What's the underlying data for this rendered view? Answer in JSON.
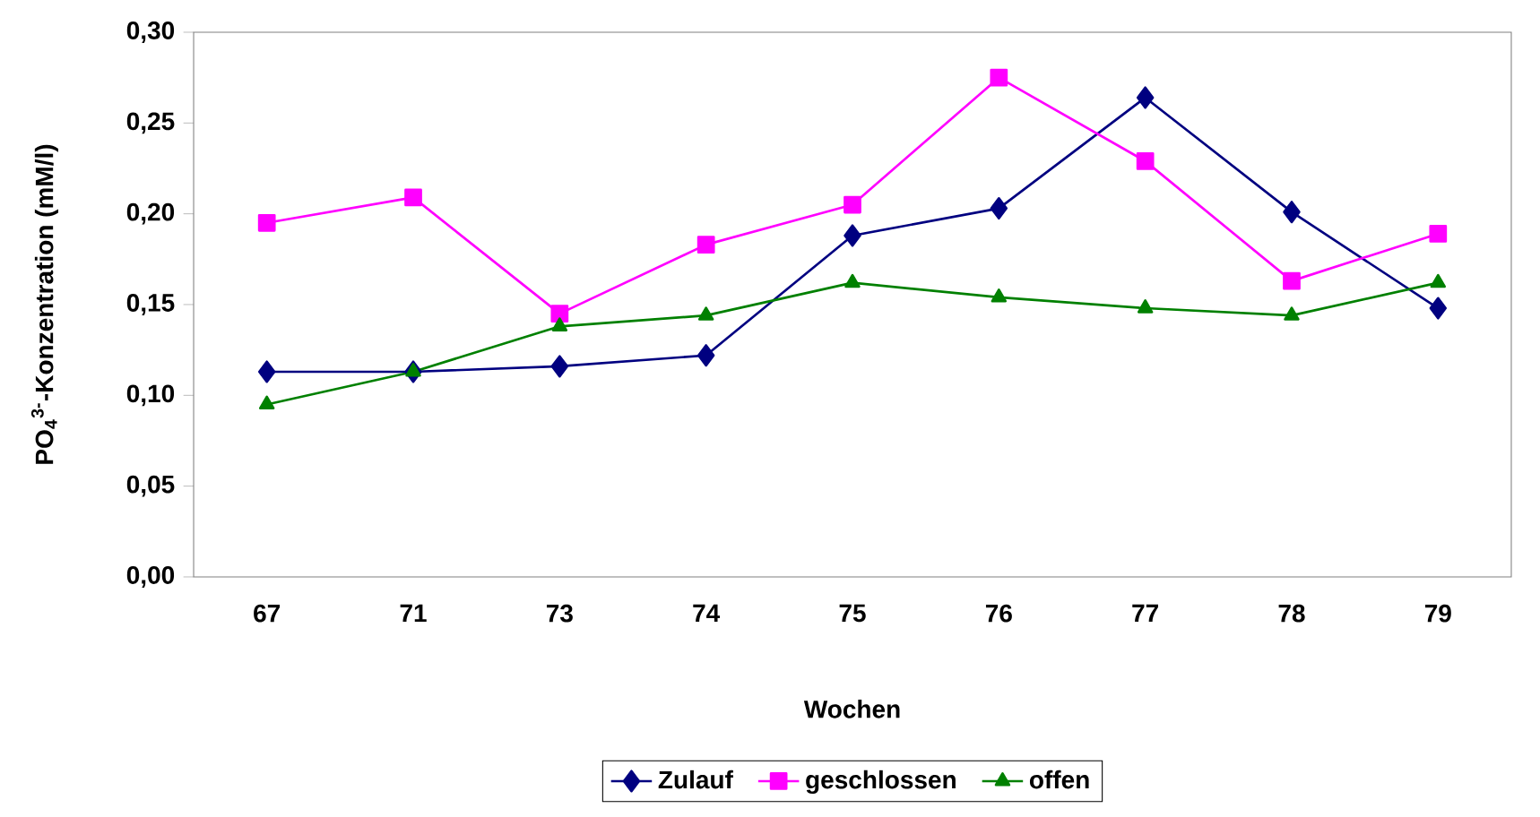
{
  "chart_data": {
    "type": "line",
    "xlabel": "Wochen",
    "ylabel": "PO$_{4}$$^{3-}$-Konzentration (mM/l)",
    "categories": [
      "67",
      "71",
      "73",
      "74",
      "75",
      "76",
      "77",
      "78",
      "79"
    ],
    "series": [
      {
        "name": "Zulauf",
        "color": "#000080",
        "marker": "diamond",
        "values": [
          0.113,
          0.113,
          0.116,
          0.122,
          0.188,
          0.203,
          0.264,
          0.201,
          0.148
        ]
      },
      {
        "name": "geschlossen",
        "color": "#ff00ff",
        "marker": "square",
        "values": [
          0.195,
          0.209,
          0.145,
          0.183,
          0.205,
          0.275,
          0.229,
          0.163,
          0.189
        ]
      },
      {
        "name": "offen",
        "color": "#008000",
        "marker": "triangle",
        "values": [
          0.095,
          0.113,
          0.138,
          0.144,
          0.162,
          0.154,
          0.148,
          0.144,
          0.162
        ]
      }
    ],
    "ylim": [
      0,
      0.3
    ],
    "yticks": [
      {
        "value": 0,
        "label": "0,00"
      },
      {
        "value": 0.05,
        "label": "0,05"
      },
      {
        "value": 0.1,
        "label": "0,10"
      },
      {
        "value": 0.15,
        "label": "0,15"
      },
      {
        "value": 0.2,
        "label": "0,20"
      },
      {
        "value": 0.25,
        "label": "0,25"
      },
      {
        "value": 0.3,
        "label": "0,30"
      }
    ],
    "grid": false,
    "legend": "bottom",
    "line_style": "solid"
  }
}
